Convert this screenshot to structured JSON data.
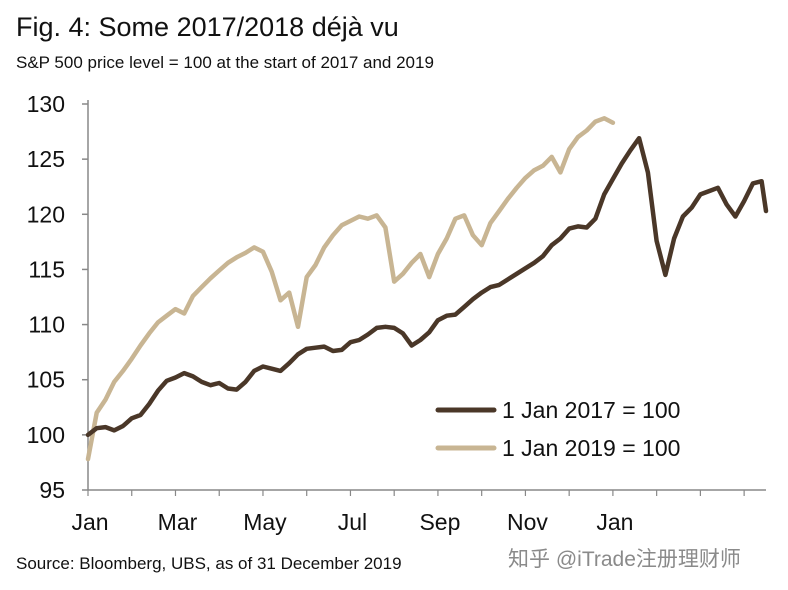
{
  "header": {
    "title": "Fig. 4: Some 2017/2018 déjà vu",
    "subtitle": "S&P 500 price level = 100 at the start of 2017 and 2019"
  },
  "footer": {
    "source": "Source: Bloomberg, UBS, as of 31 December 2019",
    "watermark": "知乎 @iTrade注册理财师"
  },
  "chart_data": {
    "type": "line",
    "xlabel": "",
    "ylabel": "",
    "ylim": [
      95,
      130
    ],
    "yticks": [
      95,
      100,
      105,
      110,
      115,
      120,
      125,
      130
    ],
    "xlim": [
      0,
      15.5
    ],
    "xticks": [
      {
        "label": "Jan",
        "x": 0
      },
      {
        "label": "Mar",
        "x": 2
      },
      {
        "label": "May",
        "x": 4
      },
      {
        "label": "Jul",
        "x": 6
      },
      {
        "label": "Sep",
        "x": 8
      },
      {
        "label": "Nov",
        "x": 10
      },
      {
        "label": "Jan",
        "x": 12
      }
    ],
    "grid": false,
    "legend_position": "bottom-right",
    "series": [
      {
        "name": "1 Jan 2017 = 100",
        "color": "#4a3728",
        "x": [
          0.0,
          0.2,
          0.4,
          0.6,
          0.8,
          1.0,
          1.2,
          1.4,
          1.6,
          1.8,
          2.0,
          2.2,
          2.4,
          2.6,
          2.8,
          3.0,
          3.2,
          3.4,
          3.6,
          3.8,
          4.0,
          4.2,
          4.4,
          4.6,
          4.8,
          5.0,
          5.2,
          5.4,
          5.6,
          5.8,
          6.0,
          6.2,
          6.4,
          6.6,
          6.8,
          7.0,
          7.2,
          7.4,
          7.6,
          7.8,
          8.0,
          8.2,
          8.4,
          8.6,
          8.8,
          9.0,
          9.2,
          9.4,
          9.6,
          9.8,
          10.0,
          10.2,
          10.4,
          10.6,
          10.8,
          11.0,
          11.2,
          11.4,
          11.6,
          11.8,
          12.0,
          12.2,
          12.4,
          12.6,
          12.8,
          13.0,
          13.2,
          13.4,
          13.6,
          13.8,
          14.0,
          14.2,
          14.4,
          14.6,
          14.8,
          15.0,
          15.2,
          15.4,
          15.5
        ],
        "values": [
          100.0,
          100.6,
          100.7,
          100.4,
          100.8,
          101.5,
          101.8,
          102.8,
          104.0,
          104.9,
          105.2,
          105.6,
          105.3,
          104.8,
          104.5,
          104.7,
          104.2,
          104.1,
          104.8,
          105.8,
          106.2,
          106.0,
          105.8,
          106.5,
          107.3,
          107.8,
          107.9,
          108.0,
          107.6,
          107.7,
          108.4,
          108.6,
          109.1,
          109.7,
          109.8,
          109.7,
          109.2,
          108.1,
          108.6,
          109.3,
          110.4,
          110.8,
          110.9,
          111.6,
          112.3,
          112.9,
          113.4,
          113.6,
          114.1,
          114.6,
          115.1,
          115.6,
          116.2,
          117.2,
          117.8,
          118.7,
          118.9,
          118.8,
          119.6,
          121.8,
          123.2,
          124.6,
          125.8,
          126.9,
          123.8,
          117.6,
          114.5,
          117.8,
          119.8,
          120.6,
          121.8,
          122.1,
          122.4,
          120.9,
          119.8,
          121.2,
          122.8,
          123.0,
          120.3
        ]
      },
      {
        "name": "1 Jan 2019 = 100",
        "color": "#c8b593",
        "x": [
          0.0,
          0.2,
          0.4,
          0.6,
          0.8,
          1.0,
          1.2,
          1.4,
          1.6,
          1.8,
          2.0,
          2.2,
          2.4,
          2.6,
          2.8,
          3.0,
          3.2,
          3.4,
          3.6,
          3.8,
          4.0,
          4.2,
          4.4,
          4.6,
          4.8,
          5.0,
          5.2,
          5.4,
          5.6,
          5.8,
          6.0,
          6.2,
          6.4,
          6.6,
          6.8,
          7.0,
          7.2,
          7.4,
          7.6,
          7.8,
          8.0,
          8.2,
          8.4,
          8.6,
          8.8,
          9.0,
          9.2,
          9.4,
          9.6,
          9.8,
          10.0,
          10.2,
          10.4,
          10.6,
          10.8,
          11.0,
          11.2,
          11.4,
          11.6,
          11.8,
          12.0
        ],
        "values": [
          97.8,
          102.0,
          103.2,
          104.8,
          105.8,
          106.9,
          108.1,
          109.2,
          110.2,
          110.8,
          111.4,
          111.0,
          112.6,
          113.4,
          114.2,
          114.9,
          115.6,
          116.1,
          116.5,
          117.0,
          116.6,
          114.8,
          112.2,
          112.9,
          109.8,
          114.3,
          115.4,
          117.0,
          118.1,
          119.0,
          119.4,
          119.8,
          119.6,
          119.9,
          118.8,
          113.9,
          114.6,
          115.6,
          116.4,
          114.3,
          116.4,
          117.8,
          119.6,
          119.9,
          118.1,
          117.2,
          119.2,
          120.3,
          121.4,
          122.4,
          123.3,
          124.0,
          124.4,
          125.2,
          123.8,
          125.9,
          127.0,
          127.6,
          128.4,
          128.7,
          128.3
        ]
      }
    ]
  }
}
